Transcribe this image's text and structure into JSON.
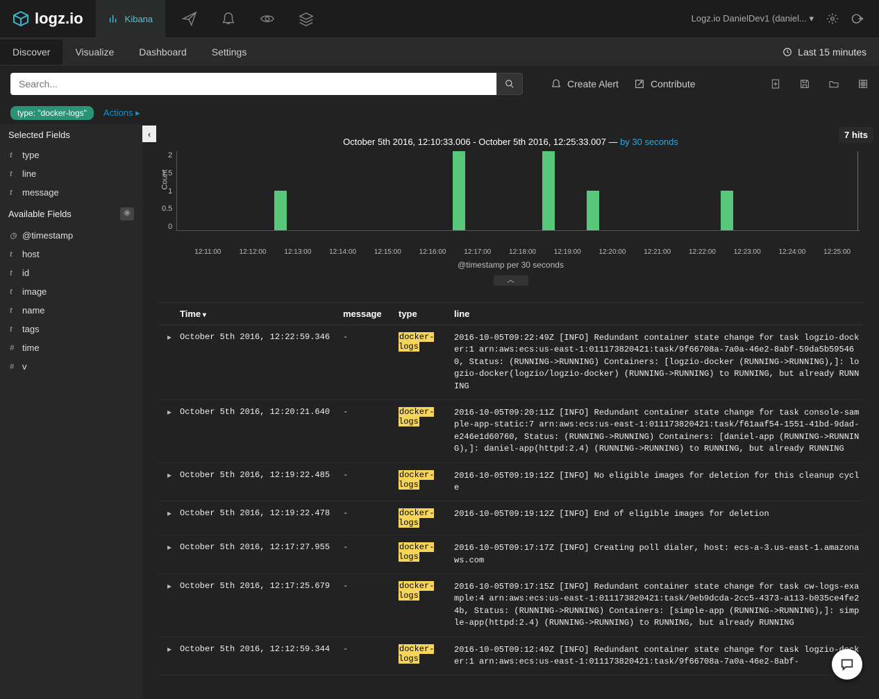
{
  "brand": "logz.io",
  "top_tab": "Kibana",
  "account_label": "Logz.io DanielDev1 (daniel...",
  "nav_tabs": [
    "Discover",
    "Visualize",
    "Dashboard",
    "Settings"
  ],
  "active_tab_index": 0,
  "time_range_label": "Last 15 minutes",
  "search_placeholder": "Search...",
  "actions": {
    "create_alert": "Create Alert",
    "contribute": "Contribute"
  },
  "filter_pill": "type: \"docker-logs\"",
  "actions_link": "Actions ▸",
  "sidebar": {
    "selected_label": "Selected Fields",
    "selected": [
      {
        "type": "t",
        "name": "type"
      },
      {
        "type": "t",
        "name": "line"
      },
      {
        "type": "t",
        "name": "message"
      }
    ],
    "available_label": "Available Fields",
    "available": [
      {
        "type": "o",
        "name": "@timestamp"
      },
      {
        "type": "t",
        "name": "host"
      },
      {
        "type": "t",
        "name": "id"
      },
      {
        "type": "t",
        "name": "image"
      },
      {
        "type": "t",
        "name": "name"
      },
      {
        "type": "t",
        "name": "tags"
      },
      {
        "type": "#",
        "name": "time"
      },
      {
        "type": "#",
        "name": "v"
      }
    ]
  },
  "hits": "7 hits",
  "chart": {
    "title_range": "October 5th 2016, 12:10:33.006 - October 5th 2016, 12:25:33.007",
    "interval_label": "by 30 seconds",
    "y_label": "Count",
    "x_label": "@timestamp per 30 seconds",
    "ymax": 2,
    "yticks": [
      "2",
      "1.5",
      "1",
      "0.5",
      "0"
    ],
    "xticks": [
      "12:11:00",
      "12:12:00",
      "12:13:00",
      "12:14:00",
      "12:15:00",
      "12:16:00",
      "12:17:00",
      "12:18:00",
      "12:19:00",
      "12:20:00",
      "12:21:00",
      "12:22:00",
      "12:23:00",
      "12:24:00",
      "12:25:00"
    ],
    "bars": [
      {
        "left_pct": 14.2,
        "value": 1
      },
      {
        "left_pct": 40.4,
        "value": 2
      },
      {
        "left_pct": 53.5,
        "value": 2
      },
      {
        "left_pct": 60.0,
        "value": 1
      },
      {
        "left_pct": 79.6,
        "value": 1
      }
    ],
    "bar_color": "#58c77a",
    "background_color": "#222"
  },
  "columns": {
    "time": "Time",
    "message": "message",
    "type": "type",
    "line": "line"
  },
  "rows": [
    {
      "time": "October 5th 2016, 12:22:59.346",
      "message": "-",
      "type": "docker-logs",
      "line": "2016-10-05T09:22:49Z [INFO] Redundant container state change for task logzio-docker:1 arn:aws:ecs:us-east-1:011173820421:task/9f66708a-7a0a-46e2-8abf-59da5b595460, Status: (RUNNING->RUNNING) Containers: [logzio-docker (RUNNING->RUNNING),]: logzio-docker(logzio/logzio-docker) (RUNNING->RUNNING) to RUNNING, but already RUNNING"
    },
    {
      "time": "October 5th 2016, 12:20:21.640",
      "message": "-",
      "type": "docker-logs",
      "line": "2016-10-05T09:20:11Z [INFO] Redundant container state change for task console-sample-app-static:7 arn:aws:ecs:us-east-1:011173820421:task/f61aaf54-1551-41bd-9dad-e246e1d60760, Status: (RUNNING->RUNNING) Containers: [daniel-app (RUNNING->RUNNING),]: daniel-app(httpd:2.4) (RUNNING->RUNNING) to RUNNING, but already RUNNING"
    },
    {
      "time": "October 5th 2016, 12:19:22.485",
      "message": "-",
      "type": "docker-logs",
      "line": "2016-10-05T09:19:12Z [INFO] No eligible images for deletion for this cleanup cycle"
    },
    {
      "time": "October 5th 2016, 12:19:22.478",
      "message": "-",
      "type": "docker-logs",
      "line": "2016-10-05T09:19:12Z [INFO] End of eligible images for deletion"
    },
    {
      "time": "October 5th 2016, 12:17:27.955",
      "message": "-",
      "type": "docker-logs",
      "line": "2016-10-05T09:17:17Z [INFO] Creating poll dialer, host: ecs-a-3.us-east-1.amazonaws.com"
    },
    {
      "time": "October 5th 2016, 12:17:25.679",
      "message": "-",
      "type": "docker-logs",
      "line": "2016-10-05T09:17:15Z [INFO] Redundant container state change for task cw-logs-example:4 arn:aws:ecs:us-east-1:011173820421:task/9eb9dcda-2cc5-4373-a113-b035ce4fe24b, Status: (RUNNING->RUNNING) Containers: [simple-app (RUNNING->RUNNING),]: simple-app(httpd:2.4) (RUNNING->RUNNING) to RUNNING, but already RUNNING"
    },
    {
      "time": "October 5th 2016, 12:12:59.344",
      "message": "-",
      "type": "docker-logs",
      "line": "2016-10-05T09:12:49Z [INFO] Redundant container state change for task logzio-docker:1 arn:aws:ecs:us-east-1:011173820421:task/9f66708a-7a0a-46e2-8abf-"
    }
  ]
}
